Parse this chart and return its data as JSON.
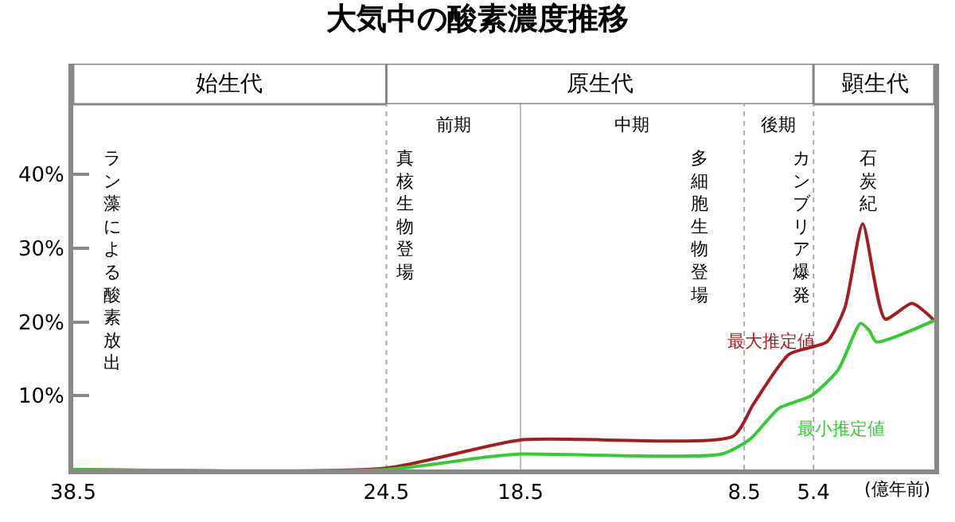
{
  "chart_data": {
    "type": "line",
    "title": "大気中の酸素濃度推移",
    "xlabel": "(億年前)",
    "xlim": [
      38.5,
      0
    ],
    "xticks": [
      38.5,
      24.5,
      18.5,
      8.5,
      5.4
    ],
    "ylim": [
      0,
      55
    ],
    "yticks": [
      {
        "value": 10,
        "label": "10%"
      },
      {
        "value": 20,
        "label": "20%"
      },
      {
        "value": 30,
        "label": "30%"
      },
      {
        "value": 40,
        "label": "40%"
      }
    ],
    "grid": false,
    "legend": false,
    "marker": "none",
    "line_style": "solid",
    "series": [
      {
        "name": "最大推定値",
        "color": "#a31f1f",
        "x": [
          38.5,
          24.5,
          18.5,
          9.0,
          8.1,
          6.5,
          4.8,
          4.0,
          3.2,
          2.2,
          1.0,
          0
        ],
        "values": [
          0,
          0.2,
          4,
          4.5,
          8.8,
          15.6,
          17.3,
          21.9,
          33.3,
          20.4,
          22.5,
          20.2
        ]
      },
      {
        "name": "最小推定値",
        "color": "#33cc33",
        "x": [
          38.5,
          24.5,
          20.0,
          18.5,
          9.5,
          8.2,
          6.95,
          5.5,
          4.3,
          3.3,
          2.9,
          2.6,
          0
        ],
        "values": [
          0,
          0,
          1.7,
          2.1,
          2.1,
          4.2,
          8.3,
          10,
          13.5,
          19.8,
          18.8,
          17.3,
          20.2
        ]
      }
    ],
    "bands": [
      {
        "axis": "x",
        "from": 38.5,
        "to": 24.5,
        "label": "始生代",
        "color": "#ffffff"
      },
      {
        "axis": "x",
        "from": 24.5,
        "to": 5.4,
        "label": "原生代",
        "color": "#ffffff"
      },
      {
        "axis": "x",
        "from": 5.4,
        "to": 0,
        "label": "顕生代",
        "color": "#ffffff"
      },
      {
        "axis": "x",
        "from": 24.5,
        "to": 18.5,
        "label": "前期",
        "color": "#ffffff"
      },
      {
        "axis": "x",
        "from": 18.5,
        "to": 8.5,
        "label": "中期",
        "color": "#ffffff"
      },
      {
        "axis": "x",
        "from": 8.5,
        "to": 5.4,
        "label": "後期",
        "color": "#ffffff"
      }
    ],
    "ref_lines": [
      {
        "axis": "x",
        "value": 24.5,
        "label": null,
        "color": "#aaaaaa",
        "line_style": "dotted"
      },
      {
        "axis": "x",
        "value": 18.5,
        "label": null,
        "color": "#bbbbbb",
        "line_style": "solid"
      },
      {
        "axis": "x",
        "value": 8.5,
        "label": null,
        "color": "#aaaaaa",
        "line_style": "dotted"
      },
      {
        "axis": "x",
        "value": 5.4,
        "label": null,
        "color": "#aaaaaa",
        "line_style": "dotted"
      }
    ],
    "annotations": [
      "ラン藻による酸素放出",
      "真核生物登場",
      "多細胞生物登場",
      "カンブリア爆発",
      "石炭紀"
    ]
  }
}
